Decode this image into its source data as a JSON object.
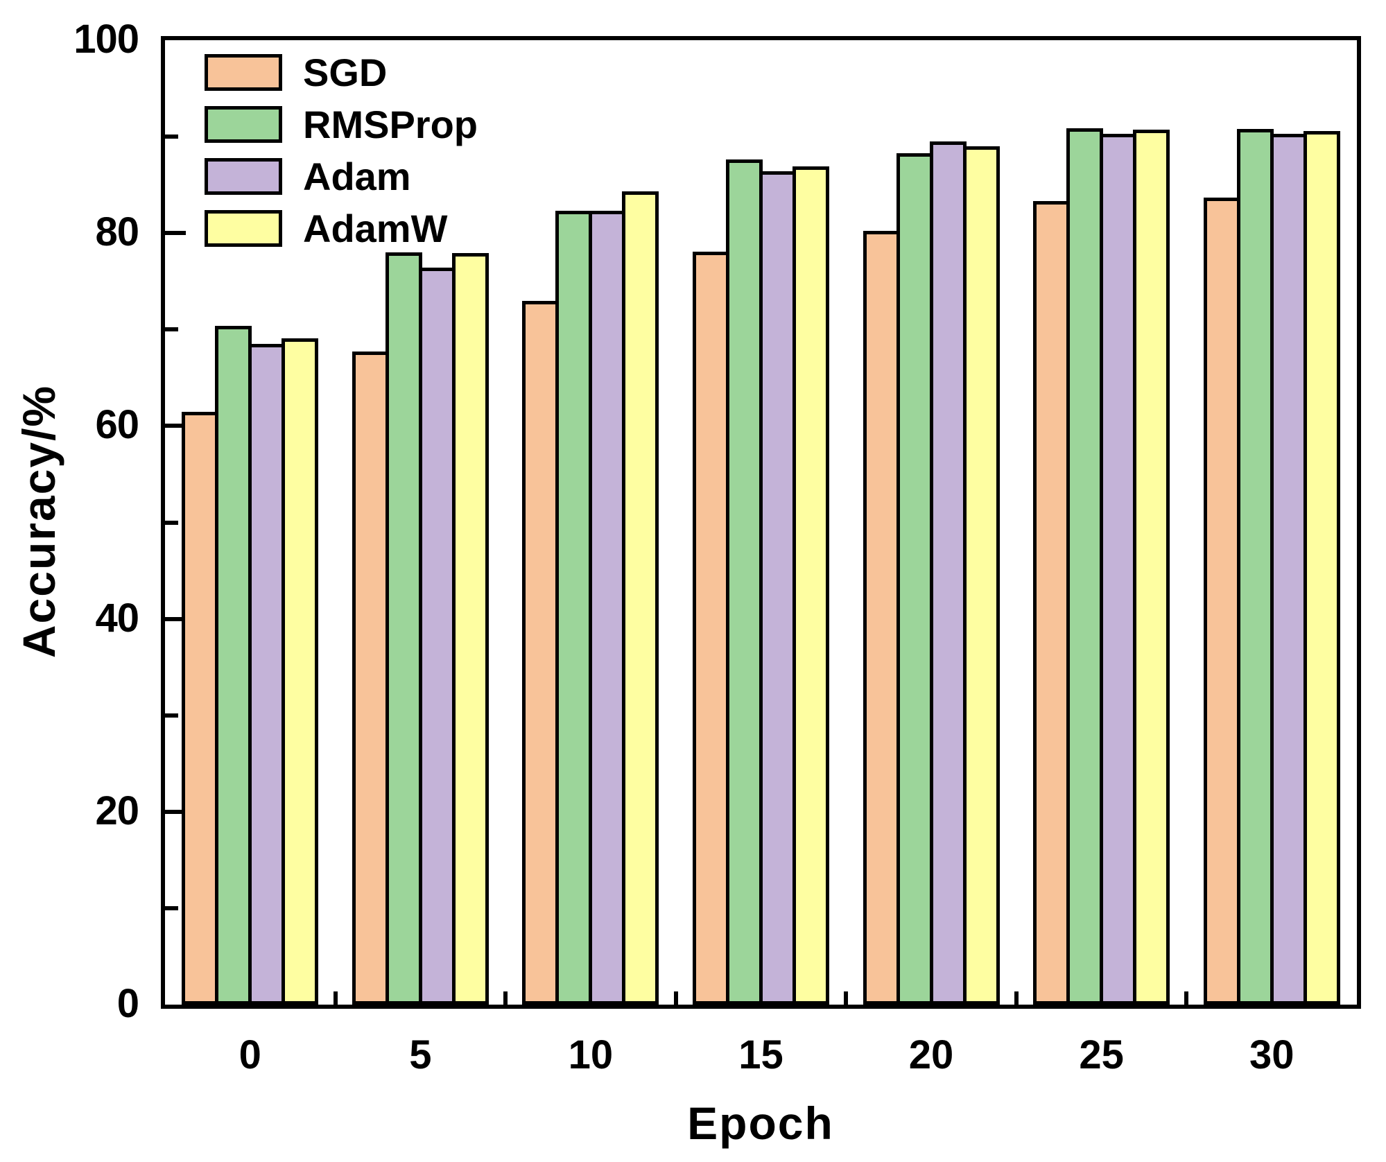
{
  "figure": {
    "background": "#ffffff",
    "frame_color": "#000000"
  },
  "y_axis": {
    "title": "Accuracy/%",
    "min": 0,
    "max": 100,
    "major_step": 20,
    "minor_step": 10,
    "tick_labels": [
      "0",
      "20",
      "40",
      "60",
      "80",
      "100"
    ],
    "tick_values": [
      0,
      20,
      40,
      60,
      80,
      100
    ],
    "minor_tick_values": [
      10,
      20,
      30,
      40,
      50,
      60,
      70,
      80,
      90
    ]
  },
  "x_axis": {
    "title": "Epoch",
    "tick_labels": [
      "0",
      "5",
      "10",
      "15",
      "20",
      "25",
      "30"
    ]
  },
  "chart_data": {
    "type": "bar",
    "title": "",
    "xlabel": "Epoch",
    "ylabel": "Accuracy/%",
    "categories": [
      0,
      5,
      10,
      15,
      20,
      25,
      30
    ],
    "series": [
      {
        "name": "SGD",
        "color": "#F8C399",
        "values": [
          61.5,
          67.7,
          73.0,
          78.1,
          80.2,
          83.3,
          83.7
        ]
      },
      {
        "name": "RMSProp",
        "color": "#9CD59A",
        "values": [
          70.4,
          78.0,
          82.3,
          87.6,
          88.3,
          90.9,
          90.8
        ]
      },
      {
        "name": "Adam",
        "color": "#C4B3D8",
        "values": [
          68.5,
          76.4,
          82.3,
          86.4,
          89.5,
          90.3,
          90.3
        ]
      },
      {
        "name": "AdamW",
        "color": "#FEFEA1",
        "values": [
          69.1,
          77.9,
          84.3,
          86.9,
          89.0,
          90.7,
          90.6
        ]
      }
    ],
    "ylim": [
      0,
      100
    ],
    "grid": false,
    "legend_position": "top-left",
    "bar_outline_color": "#000000"
  }
}
